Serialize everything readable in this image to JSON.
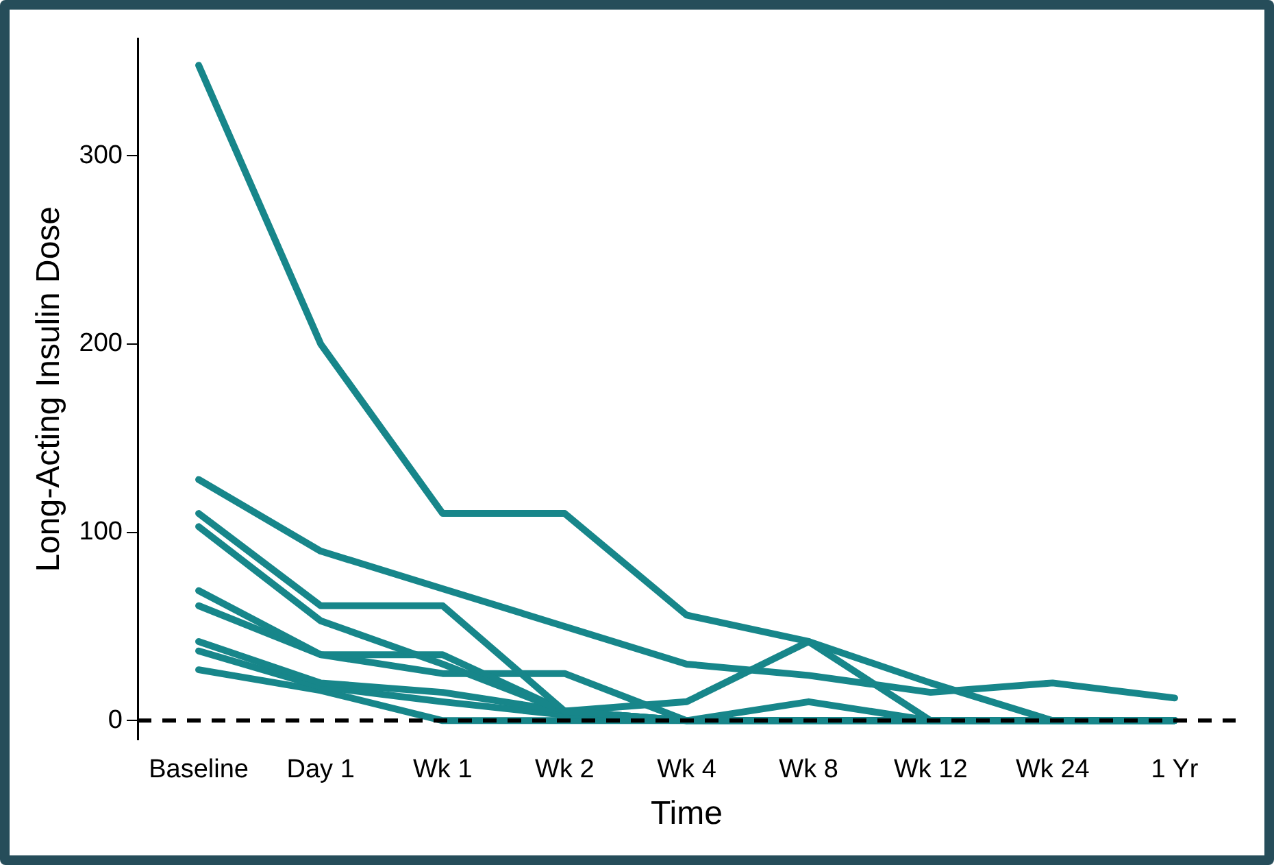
{
  "chart_data": {
    "type": "line",
    "xlabel": "Time",
    "ylabel": "Long-Acting Insulin Dose",
    "categories": [
      "Baseline",
      "Day 1",
      "Wk 1",
      "Wk 2",
      "Wk 4",
      "Wk 8",
      "Wk 12",
      "Wk 24",
      "1 Yr"
    ],
    "series": [
      {
        "color": "#17868a",
        "values": [
          348,
          200,
          110,
          110,
          56,
          42,
          20,
          0,
          0
        ]
      },
      {
        "color": "#17868a",
        "values": [
          128,
          90,
          70,
          50,
          30,
          24,
          15,
          20,
          12
        ]
      },
      {
        "color": "#17868a",
        "values": [
          110,
          61,
          61,
          5,
          0,
          0,
          0,
          0,
          0
        ]
      },
      {
        "color": "#17868a",
        "values": [
          103,
          53,
          30,
          5,
          0,
          0,
          0,
          0,
          0
        ]
      },
      {
        "color": "#17868a",
        "values": [
          69,
          35,
          35,
          5,
          0,
          0,
          0,
          0,
          0
        ]
      },
      {
        "color": "#17868a",
        "values": [
          61,
          35,
          25,
          25,
          0,
          0,
          0,
          0,
          0
        ]
      },
      {
        "color": "#17868a",
        "values": [
          42,
          20,
          15,
          5,
          10,
          42,
          0,
          0,
          0
        ]
      },
      {
        "color": "#17868a",
        "values": [
          37,
          18,
          10,
          3,
          0,
          10,
          0,
          0,
          0
        ]
      },
      {
        "color": "#17868a",
        "values": [
          27,
          16,
          0,
          0,
          0,
          0,
          0,
          0,
          0
        ]
      }
    ],
    "ylim": [
      -10,
      362
    ],
    "yticks": [
      0,
      100,
      200,
      300
    ],
    "ref_lines": [
      {
        "axis": "y",
        "value": 0,
        "color": "#000000",
        "line_style": "dashed"
      }
    ],
    "grid": false,
    "legend": false,
    "marker": "none",
    "line_style": "solid"
  }
}
